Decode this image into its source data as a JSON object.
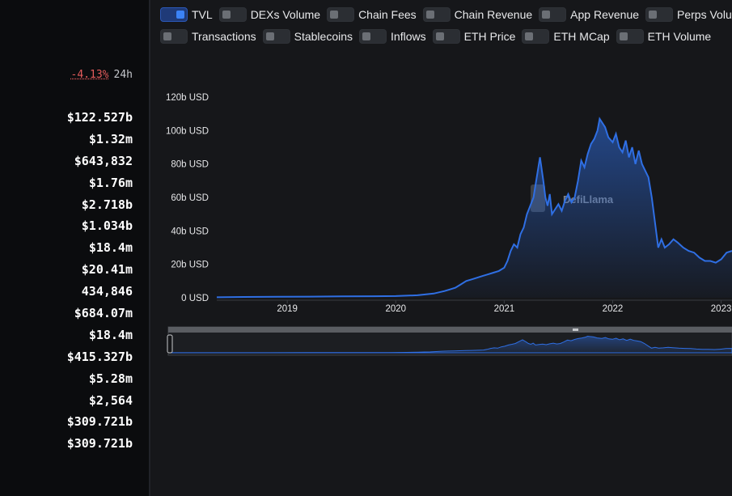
{
  "toggles_row1": [
    {
      "label": "TVL",
      "on": true
    },
    {
      "label": "DEXs Volume",
      "on": false
    },
    {
      "label": "Chain Fees",
      "on": false
    },
    {
      "label": "Chain Revenue",
      "on": false
    },
    {
      "label": "App Revenue",
      "on": false
    },
    {
      "label": "Perps Volume",
      "on": false
    }
  ],
  "toggles_row2": [
    {
      "label": "Transactions",
      "on": false
    },
    {
      "label": "Stablecoins",
      "on": false
    },
    {
      "label": "Inflows",
      "on": false
    },
    {
      "label": "ETH Price",
      "on": false
    },
    {
      "label": "ETH MCap",
      "on": false
    },
    {
      "label": "ETH Volume",
      "on": false
    }
  ],
  "change": {
    "value": "-4.13%",
    "period": "24h"
  },
  "stats": [
    "$122.527b",
    "$1.32m",
    "$643,832",
    "$1.76m",
    "$2.718b",
    "$1.034b",
    "$18.4m",
    "$20.41m",
    "434,846",
    "$684.07m",
    "$18.4m",
    "$415.327b",
    "$5.28m",
    "$2,564",
    "$309.721b",
    "$309.721b"
  ],
  "watermark": "DefiLlama",
  "colors": {
    "line": "#2f6fe4",
    "background": "#16171a",
    "negative": "#e45c5c"
  },
  "chart_data": {
    "type": "area",
    "title": "",
    "xlabel": "",
    "ylabel": "",
    "series": [
      {
        "name": "TVL",
        "x": [
          2018.35,
          2018.6,
          2018.9,
          2019.2,
          2019.5,
          2019.8,
          2020.0,
          2020.2,
          2020.35,
          2020.45,
          2020.5,
          2020.55,
          2020.6,
          2020.65,
          2020.7,
          2020.75,
          2020.8,
          2020.85,
          2020.9,
          2020.95,
          2021.0,
          2021.03,
          2021.06,
          2021.09,
          2021.12,
          2021.15,
          2021.18,
          2021.21,
          2021.24,
          2021.27,
          2021.3,
          2021.33,
          2021.36,
          2021.38,
          2021.4,
          2021.42,
          2021.44,
          2021.47,
          2021.5,
          2021.53,
          2021.56,
          2021.59,
          2021.62,
          2021.65,
          2021.68,
          2021.71,
          2021.74,
          2021.77,
          2021.8,
          2021.83,
          2021.86,
          2021.88,
          2021.9,
          2021.93,
          2021.96,
          2022.0,
          2022.03,
          2022.06,
          2022.09,
          2022.12,
          2022.15,
          2022.18,
          2022.21,
          2022.24,
          2022.27,
          2022.3,
          2022.33,
          2022.36,
          2022.39,
          2022.42,
          2022.45,
          2022.48,
          2022.52,
          2022.56,
          2022.6,
          2022.65,
          2022.7,
          2022.75,
          2022.8,
          2022.85,
          2022.9,
          2022.95,
          2023.0,
          2023.05,
          2023.1
        ],
        "y": [
          0.3,
          0.5,
          0.6,
          0.7,
          0.8,
          0.9,
          1.0,
          1.5,
          2.5,
          4,
          5,
          6,
          8,
          10,
          11,
          12,
          13,
          14,
          15,
          16,
          18,
          22,
          28,
          32,
          30,
          38,
          42,
          50,
          55,
          60,
          72,
          84,
          70,
          60,
          55,
          62,
          50,
          53,
          56,
          52,
          58,
          62,
          57,
          60,
          70,
          82,
          78,
          86,
          92,
          95,
          100,
          107,
          105,
          102,
          96,
          93,
          98,
          90,
          87,
          94,
          84,
          90,
          80,
          88,
          80,
          76,
          72,
          60,
          45,
          30,
          35,
          30,
          32,
          35,
          33,
          30,
          28,
          27,
          24,
          22,
          22,
          21,
          23,
          27,
          28
        ]
      }
    ],
    "xticks": [
      "2019",
      "2020",
      "2021",
      "2022",
      "2023"
    ],
    "yticks": [
      "0 USD",
      "20b USD",
      "40b USD",
      "60b USD",
      "80b USD",
      "100b USD",
      "120b USD"
    ],
    "xlim": [
      2018.35,
      2023.1
    ],
    "ylim": [
      0,
      120
    ],
    "grid": false,
    "legend": "none"
  }
}
